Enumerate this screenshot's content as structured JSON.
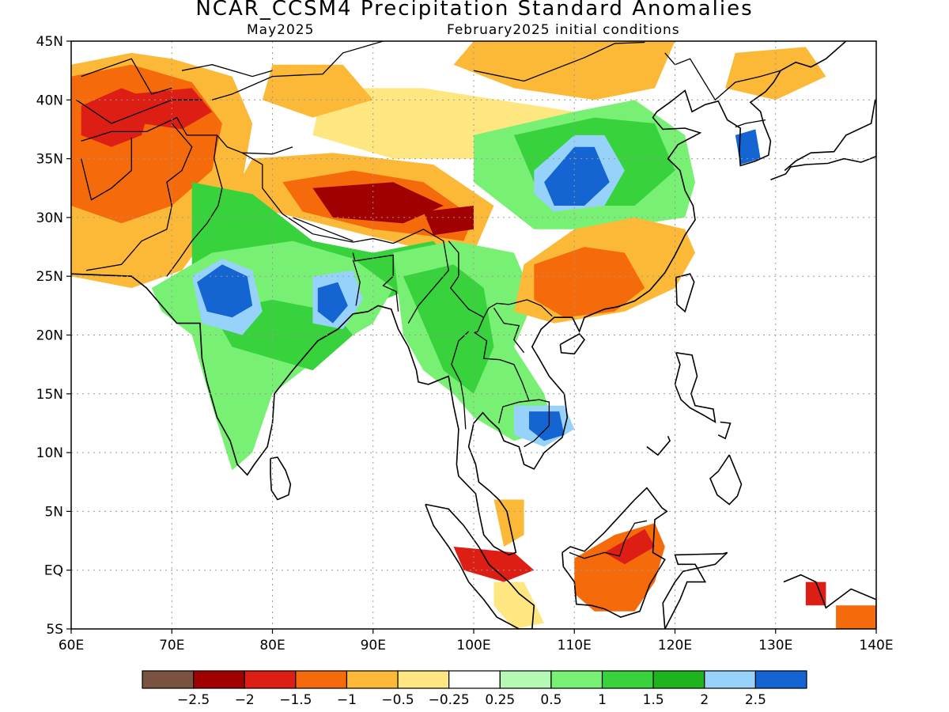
{
  "title": "NCAR_CCSM4 Precipitation Standard Anomalies",
  "subtitle_left": "May2025",
  "subtitle_right": "February2025 initial conditions",
  "map": {
    "lon_range": [
      60,
      140
    ],
    "lat_range": [
      -5,
      45
    ],
    "lon_ticks": [
      {
        "value": 60,
        "label": "60E"
      },
      {
        "value": 70,
        "label": "70E"
      },
      {
        "value": 80,
        "label": "80E"
      },
      {
        "value": 90,
        "label": "90E"
      },
      {
        "value": 100,
        "label": "100E"
      },
      {
        "value": 110,
        "label": "110E"
      },
      {
        "value": 120,
        "label": "120E"
      },
      {
        "value": 130,
        "label": "130E"
      },
      {
        "value": 140,
        "label": "140E"
      }
    ],
    "lat_ticks": [
      {
        "value": 45,
        "label": "45N"
      },
      {
        "value": 40,
        "label": "40N"
      },
      {
        "value": 35,
        "label": "35N"
      },
      {
        "value": 30,
        "label": "30N"
      },
      {
        "value": 25,
        "label": "25N"
      },
      {
        "value": 20,
        "label": "20N"
      },
      {
        "value": 15,
        "label": "15N"
      },
      {
        "value": 10,
        "label": "10N"
      },
      {
        "value": 5,
        "label": "5N"
      },
      {
        "value": 0,
        "label": "EQ"
      },
      {
        "value": -5,
        "label": "5S"
      }
    ],
    "grid": "dotted"
  },
  "colorbar": {
    "colors": [
      "#7a5242",
      "#a00000",
      "#dc1e14",
      "#f56a0a",
      "#fbb937",
      "#fee680",
      "#ffffff",
      "#b4fab4",
      "#78f073",
      "#37d23c",
      "#1eb41e",
      "#96d2fa",
      "#1464d2"
    ],
    "labels": [
      "−2.5",
      "−2",
      "−1.5",
      "−1",
      "−0.5",
      "−0.25",
      "0.25",
      "0.5",
      "1",
      "1.5",
      "2",
      "2.5"
    ]
  },
  "regions": [
    {
      "name": "southwest-asia-dry",
      "class": 4,
      "pts": [
        [
          60,
          43
        ],
        [
          66,
          44
        ],
        [
          70,
          43.5
        ],
        [
          76,
          42
        ],
        [
          78,
          38
        ],
        [
          77,
          33
        ],
        [
          74,
          29
        ],
        [
          71,
          25.5
        ],
        [
          66,
          24
        ],
        [
          60,
          25
        ]
      ]
    },
    {
      "name": "southwest-asia-drier",
      "class": 3,
      "pts": [
        [
          60,
          42
        ],
        [
          66,
          43
        ],
        [
          72,
          41.5
        ],
        [
          75,
          38
        ],
        [
          74,
          34
        ],
        [
          70,
          31
        ],
        [
          65,
          29.5
        ],
        [
          60,
          31
        ]
      ]
    },
    {
      "name": "afghanistan-core",
      "class": 2,
      "pts": [
        [
          61,
          39.5
        ],
        [
          65,
          41
        ],
        [
          68,
          40
        ],
        [
          67,
          37
        ],
        [
          64,
          36
        ],
        [
          61,
          37
        ]
      ]
    },
    {
      "name": "central-asia-moderate",
      "class": 2,
      "pts": [
        [
          66,
          40.5
        ],
        [
          72,
          41
        ],
        [
          74,
          39
        ],
        [
          71,
          37.5
        ],
        [
          67,
          38
        ]
      ]
    },
    {
      "name": "mongolia-dry",
      "class": 4,
      "pts": [
        [
          100,
          45
        ],
        [
          120,
          45
        ],
        [
          118,
          41
        ],
        [
          112,
          40
        ],
        [
          104,
          41
        ],
        [
          98,
          43
        ]
      ]
    },
    {
      "name": "north-china-belt",
      "class": 5,
      "pts": [
        [
          85,
          41
        ],
        [
          95,
          41
        ],
        [
          110,
          39
        ],
        [
          113,
          36
        ],
        [
          105,
          35
        ],
        [
          92,
          35
        ],
        [
          84,
          37
        ]
      ]
    },
    {
      "name": "northeast-orange",
      "class": 4,
      "pts": [
        [
          126,
          44
        ],
        [
          133,
          44.5
        ],
        [
          135,
          42
        ],
        [
          130,
          40
        ],
        [
          125,
          41
        ]
      ]
    },
    {
      "name": "central-asia-orange-2",
      "class": 4,
      "pts": [
        [
          80,
          43
        ],
        [
          87,
          43
        ],
        [
          90,
          40
        ],
        [
          84,
          38.5
        ],
        [
          79,
          40
        ]
      ]
    },
    {
      "name": "tibet-orange",
      "class": 4,
      "pts": [
        [
          78,
          35
        ],
        [
          86,
          35.5
        ],
        [
          96,
          34.5
        ],
        [
          102,
          31
        ],
        [
          100,
          27
        ],
        [
          94,
          27.5
        ],
        [
          87,
          29
        ],
        [
          80,
          30.5
        ],
        [
          76,
          32
        ]
      ]
    },
    {
      "name": "tibet-red",
      "class": 3,
      "pts": [
        [
          81,
          33
        ],
        [
          88,
          34
        ],
        [
          95,
          33
        ],
        [
          100,
          30
        ],
        [
          99,
          28
        ],
        [
          95,
          28.5
        ],
        [
          90,
          29
        ],
        [
          83,
          30.5
        ]
      ]
    },
    {
      "name": "tibet-darkred",
      "class": 1,
      "pts": [
        [
          84,
          32.5
        ],
        [
          92,
          33
        ],
        [
          97,
          31
        ],
        [
          93,
          29.5
        ],
        [
          86,
          30
        ]
      ]
    },
    {
      "name": "yunnan-darkred",
      "class": 1,
      "pts": [
        [
          95,
          30.5
        ],
        [
          100,
          31
        ],
        [
          100,
          29
        ],
        [
          96,
          28.5
        ]
      ]
    },
    {
      "name": "himalaya-green",
      "class": 9,
      "pts": [
        [
          72,
          33
        ],
        [
          78,
          32
        ],
        [
          84,
          28
        ],
        [
          90,
          27
        ],
        [
          96,
          28
        ],
        [
          98,
          26
        ],
        [
          94,
          24
        ],
        [
          88,
          22
        ],
        [
          82,
          22
        ],
        [
          76,
          23
        ],
        [
          72,
          25
        ]
      ]
    },
    {
      "name": "india-green",
      "class": 8,
      "pts": [
        [
          68,
          24
        ],
        [
          74,
          27
        ],
        [
          82,
          28
        ],
        [
          88,
          26.5
        ],
        [
          92,
          24
        ],
        [
          90,
          21
        ],
        [
          86,
          19
        ],
        [
          80,
          15
        ],
        [
          78,
          10
        ],
        [
          76,
          8.5
        ],
        [
          74,
          14
        ],
        [
          72,
          20
        ],
        [
          69,
          22
        ]
      ]
    },
    {
      "name": "india-green-dark",
      "class": 9,
      "pts": [
        [
          74,
          22
        ],
        [
          80,
          23
        ],
        [
          86,
          22
        ],
        [
          88,
          20
        ],
        [
          84,
          17
        ],
        [
          80,
          18
        ],
        [
          76,
          19
        ]
      ]
    },
    {
      "name": "india-blue-light",
      "class": 11,
      "pts": [
        [
          72,
          25
        ],
        [
          75,
          26.5
        ],
        [
          78,
          25.5
        ],
        [
          79,
          22
        ],
        [
          77,
          20
        ],
        [
          73,
          21
        ]
      ]
    },
    {
      "name": "india-blue",
      "class": 12,
      "pts": [
        [
          72.5,
          24.5
        ],
        [
          75,
          26
        ],
        [
          77.5,
          25
        ],
        [
          78,
          22.5
        ],
        [
          76,
          21.5
        ],
        [
          73.5,
          22
        ]
      ]
    },
    {
      "name": "bengal-blue-light",
      "class": 11,
      "pts": [
        [
          84,
          25
        ],
        [
          88,
          25.5
        ],
        [
          89,
          23
        ],
        [
          87,
          20.5
        ],
        [
          84,
          21
        ]
      ]
    },
    {
      "name": "bengal-blue",
      "class": 12,
      "pts": [
        [
          84.5,
          24
        ],
        [
          86.5,
          24.5
        ],
        [
          87.5,
          22.5
        ],
        [
          86,
          21
        ],
        [
          84.5,
          22
        ]
      ]
    },
    {
      "name": "indochina-green",
      "class": 8,
      "pts": [
        [
          92,
          27
        ],
        [
          98,
          28
        ],
        [
          104,
          27
        ],
        [
          106,
          23
        ],
        [
          104,
          19
        ],
        [
          107,
          15
        ],
        [
          108,
          12
        ],
        [
          104,
          11
        ],
        [
          100,
          13
        ],
        [
          98,
          15
        ],
        [
          95,
          17
        ],
        [
          93,
          20
        ]
      ]
    },
    {
      "name": "indochina-green-dark",
      "class": 9,
      "pts": [
        [
          93,
          25
        ],
        [
          98,
          26
        ],
        [
          101,
          24
        ],
        [
          102,
          19
        ],
        [
          100,
          15
        ],
        [
          97,
          17
        ],
        [
          95,
          21
        ]
      ]
    },
    {
      "name": "cambodia-blue-light",
      "class": 11,
      "pts": [
        [
          104,
          14
        ],
        [
          109,
          14
        ],
        [
          110,
          12
        ],
        [
          107,
          10.5
        ],
        [
          104,
          11.5
        ]
      ]
    },
    {
      "name": "cambodia-blue",
      "class": 12,
      "pts": [
        [
          105.5,
          13.5
        ],
        [
          108.5,
          13.5
        ],
        [
          109,
          11.5
        ],
        [
          107,
          11
        ],
        [
          105.5,
          12
        ]
      ]
    },
    {
      "name": "china-green",
      "class": 8,
      "pts": [
        [
          100,
          37
        ],
        [
          110,
          39
        ],
        [
          116,
          40
        ],
        [
          121,
          37
        ],
        [
          122,
          33
        ],
        [
          121,
          30
        ],
        [
          113,
          29
        ],
        [
          106,
          29
        ],
        [
          103,
          31
        ],
        [
          100,
          33
        ]
      ]
    },
    {
      "name": "china-green-dark",
      "class": 9,
      "pts": [
        [
          104,
          37
        ],
        [
          112,
          38.5
        ],
        [
          118,
          38
        ],
        [
          120,
          34
        ],
        [
          116,
          31
        ],
        [
          110,
          31
        ],
        [
          106,
          33
        ]
      ]
    },
    {
      "name": "china-blue-light",
      "class": 11,
      "pts": [
        [
          106,
          34
        ],
        [
          110,
          37
        ],
        [
          113,
          37
        ],
        [
          115,
          34
        ],
        [
          113,
          31
        ],
        [
          108,
          30.5
        ],
        [
          106,
          32
        ]
      ]
    },
    {
      "name": "china-blue",
      "class": 12,
      "pts": [
        [
          107,
          33
        ],
        [
          110,
          36
        ],
        [
          112,
          36
        ],
        [
          113.5,
          33
        ],
        [
          111,
          31
        ],
        [
          108,
          31
        ]
      ]
    },
    {
      "name": "south-china-orange",
      "class": 4,
      "pts": [
        [
          105,
          26
        ],
        [
          110,
          29
        ],
        [
          116,
          30
        ],
        [
          121,
          29
        ],
        [
          122,
          27
        ],
        [
          120,
          24
        ],
        [
          115,
          22
        ],
        [
          108,
          21
        ],
        [
          104,
          22
        ]
      ]
    },
    {
      "name": "south-china-red",
      "class": 3,
      "pts": [
        [
          106,
          26
        ],
        [
          111,
          27.5
        ],
        [
          115,
          27
        ],
        [
          117,
          24
        ],
        [
          114,
          22
        ],
        [
          109,
          21.5
        ],
        [
          106,
          23
        ]
      ]
    },
    {
      "name": "korea-blue",
      "class": 12,
      "pts": [
        [
          126,
          37
        ],
        [
          128,
          37.5
        ],
        [
          128.5,
          35
        ],
        [
          126.5,
          34.5
        ]
      ]
    },
    {
      "name": "sumatra-red",
      "class": 2,
      "pts": [
        [
          98,
          2
        ],
        [
          104,
          1.5
        ],
        [
          106,
          0
        ],
        [
          103,
          -1
        ],
        [
          99,
          0
        ]
      ]
    },
    {
      "name": "sumatra-orange",
      "class": 4,
      "pts": [
        [
          102,
          6
        ],
        [
          105,
          6
        ],
        [
          105,
          3
        ],
        [
          103,
          2
        ]
      ]
    },
    {
      "name": "sumatra-south-orange",
      "class": 5,
      "pts": [
        [
          102,
          -1
        ],
        [
          105,
          -1
        ],
        [
          107,
          -4.5
        ],
        [
          104,
          -5
        ],
        [
          102,
          -3
        ]
      ]
    },
    {
      "name": "borneo-orange",
      "class": 3,
      "pts": [
        [
          110,
          1
        ],
        [
          114,
          3
        ],
        [
          118,
          4
        ],
        [
          119,
          2
        ],
        [
          118,
          -1
        ],
        [
          116,
          -3.5
        ],
        [
          112,
          -3.5
        ],
        [
          110,
          -2
        ]
      ]
    },
    {
      "name": "borneo-red",
      "class": 2,
      "pts": [
        [
          113,
          1.5
        ],
        [
          117,
          3.5
        ],
        [
          118,
          2
        ],
        [
          115,
          0.5
        ]
      ]
    },
    {
      "name": "new-guinea-red",
      "class": 2,
      "pts": [
        [
          133,
          -1
        ],
        [
          135,
          -1
        ],
        [
          135,
          -3
        ],
        [
          133,
          -3
        ]
      ]
    },
    {
      "name": "east-orange",
      "class": 3,
      "pts": [
        [
          136,
          -3
        ],
        [
          140,
          -3
        ],
        [
          140,
          -5
        ],
        [
          136,
          -5
        ]
      ]
    }
  ]
}
